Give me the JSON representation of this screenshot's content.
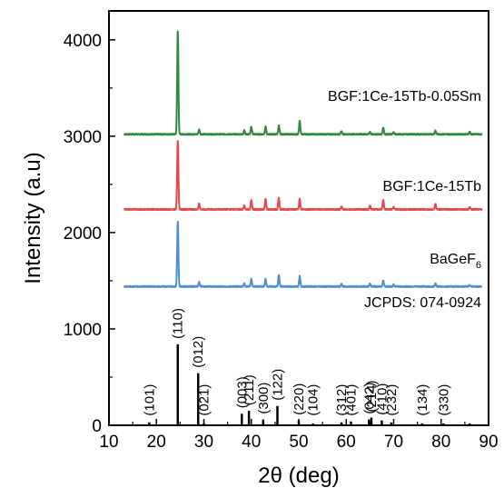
{
  "chart_data": {
    "type": "line",
    "xlabel": "2θ (deg)",
    "ylabel": "Intensity (a.u)",
    "xlim": [
      10,
      90
    ],
    "ylim": [
      0,
      4300
    ],
    "xticks": [
      "10",
      "20",
      "30",
      "40",
      "50",
      "60",
      "70",
      "80",
      "90"
    ],
    "yticks": [
      "0",
      "1000",
      "2000",
      "3000",
      "4000"
    ],
    "grid": false,
    "series": [
      {
        "name": "BGF:1Ce-15Tb-0.05Sm",
        "color": "#2e8b3e",
        "baseline": 3020,
        "peaks": [
          [
            24.5,
            1080
          ],
          [
            29.0,
            50
          ],
          [
            38.5,
            40
          ],
          [
            40.0,
            80
          ],
          [
            43.0,
            80
          ],
          [
            45.8,
            90
          ],
          [
            50.2,
            140
          ],
          [
            59.0,
            30
          ],
          [
            65.0,
            25
          ],
          [
            67.8,
            70
          ],
          [
            70.0,
            20
          ],
          [
            78.8,
            40
          ],
          [
            86.0,
            25
          ]
        ]
      },
      {
        "name": "BGF:1Ce-15Tb",
        "color": "#e8474a",
        "baseline": 2240,
        "peaks": [
          [
            24.5,
            720
          ],
          [
            29.0,
            60
          ],
          [
            38.5,
            40
          ],
          [
            40.0,
            100
          ],
          [
            43.0,
            110
          ],
          [
            45.8,
            120
          ],
          [
            50.2,
            110
          ],
          [
            59.0,
            30
          ],
          [
            65.0,
            40
          ],
          [
            67.8,
            100
          ],
          [
            70.0,
            25
          ],
          [
            78.8,
            60
          ],
          [
            86.0,
            20
          ]
        ]
      },
      {
        "name": "BaGeF6",
        "color": "#4f8fcf",
        "baseline": 1440,
        "peaks": [
          [
            24.5,
            680
          ],
          [
            29.0,
            50
          ],
          [
            38.5,
            30
          ],
          [
            40.0,
            80
          ],
          [
            43.0,
            80
          ],
          [
            45.8,
            120
          ],
          [
            50.2,
            110
          ],
          [
            59.0,
            25
          ],
          [
            65.0,
            30
          ],
          [
            67.8,
            60
          ],
          [
            70.0,
            20
          ],
          [
            78.8,
            30
          ],
          [
            86.0,
            15
          ]
        ]
      }
    ],
    "reference": {
      "name": "JCPDS: 074-0924",
      "color": "#000000",
      "sticks": [
        {
          "x": 18.5,
          "y": 30,
          "hkl": "(101)"
        },
        {
          "x": 24.5,
          "y": 840,
          "hkl": "(110)"
        },
        {
          "x": 28.8,
          "y": 540,
          "hkl": "(012)"
        },
        {
          "x": 30.0,
          "y": 20,
          "hkl": "(021)"
        },
        {
          "x": 38.0,
          "y": 120,
          "hkl": "(003)"
        },
        {
          "x": 39.5,
          "y": 150,
          "hkl": "(211)"
        },
        {
          "x": 42.5,
          "y": 60,
          "hkl": "(300)"
        },
        {
          "x": 45.5,
          "y": 200,
          "hkl": "(122)"
        },
        {
          "x": 50.0,
          "y": 50,
          "hkl": "(220)"
        },
        {
          "x": 53.0,
          "y": 20,
          "hkl": "(104)"
        },
        {
          "x": 59.0,
          "y": 30,
          "hkl": "(312)"
        },
        {
          "x": 61.0,
          "y": 40,
          "hkl": "(401)"
        },
        {
          "x": 64.8,
          "y": 60,
          "hkl": "(042)"
        },
        {
          "x": 65.3,
          "y": 80,
          "hkl": "(214)"
        },
        {
          "x": 67.5,
          "y": 50,
          "hkl": "(410)"
        },
        {
          "x": 69.5,
          "y": 30,
          "hkl": "(232)"
        },
        {
          "x": 76.0,
          "y": 20,
          "hkl": "(134)"
        },
        {
          "x": 80.5,
          "y": 20,
          "hkl": "(330)"
        },
        {
          "x": 86.0,
          "y": 20,
          "hkl": ""
        }
      ]
    }
  },
  "labels": {
    "series1": "BGF:1Ce-15Tb-0.05Sm",
    "series2": "BGF:1Ce-15Tb",
    "series3_main": "BaGeF",
    "series3_sub": "6",
    "reference": "JCPDS: 074-0924",
    "xlabel": "2θ (deg)",
    "ylabel": "Intensity (a.u)"
  }
}
